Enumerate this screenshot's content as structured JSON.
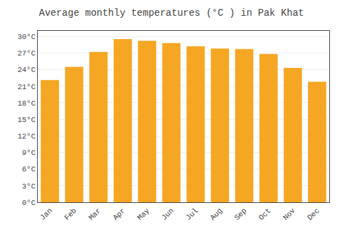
{
  "chart_data": {
    "type": "bar",
    "title": "Average monthly temperatures (°C ) in Pak Khat",
    "categories": [
      "Jan",
      "Feb",
      "Mar",
      "Apr",
      "May",
      "Jun",
      "Jul",
      "Aug",
      "Sep",
      "Oct",
      "Nov",
      "Dec"
    ],
    "values": [
      22.1,
      24.5,
      27.2,
      29.5,
      29.2,
      28.8,
      28.2,
      27.8,
      27.7,
      26.8,
      24.3,
      21.8
    ],
    "color": "#F5A623",
    "ylim": [
      0,
      31
    ],
    "yticks": [
      {
        "value": 0,
        "label": "0°C"
      },
      {
        "value": 3,
        "label": "3°C"
      },
      {
        "value": 6,
        "label": "6°C"
      },
      {
        "value": 9,
        "label": "9°C"
      },
      {
        "value": 12,
        "label": "12°C"
      },
      {
        "value": 15,
        "label": "15°C"
      },
      {
        "value": 18,
        "label": "18°C"
      },
      {
        "value": 21,
        "label": "21°C"
      },
      {
        "value": 24,
        "label": "24°C"
      },
      {
        "value": 27,
        "label": "27°C"
      },
      {
        "value": 30,
        "label": "30°C"
      }
    ],
    "grid": true
  }
}
